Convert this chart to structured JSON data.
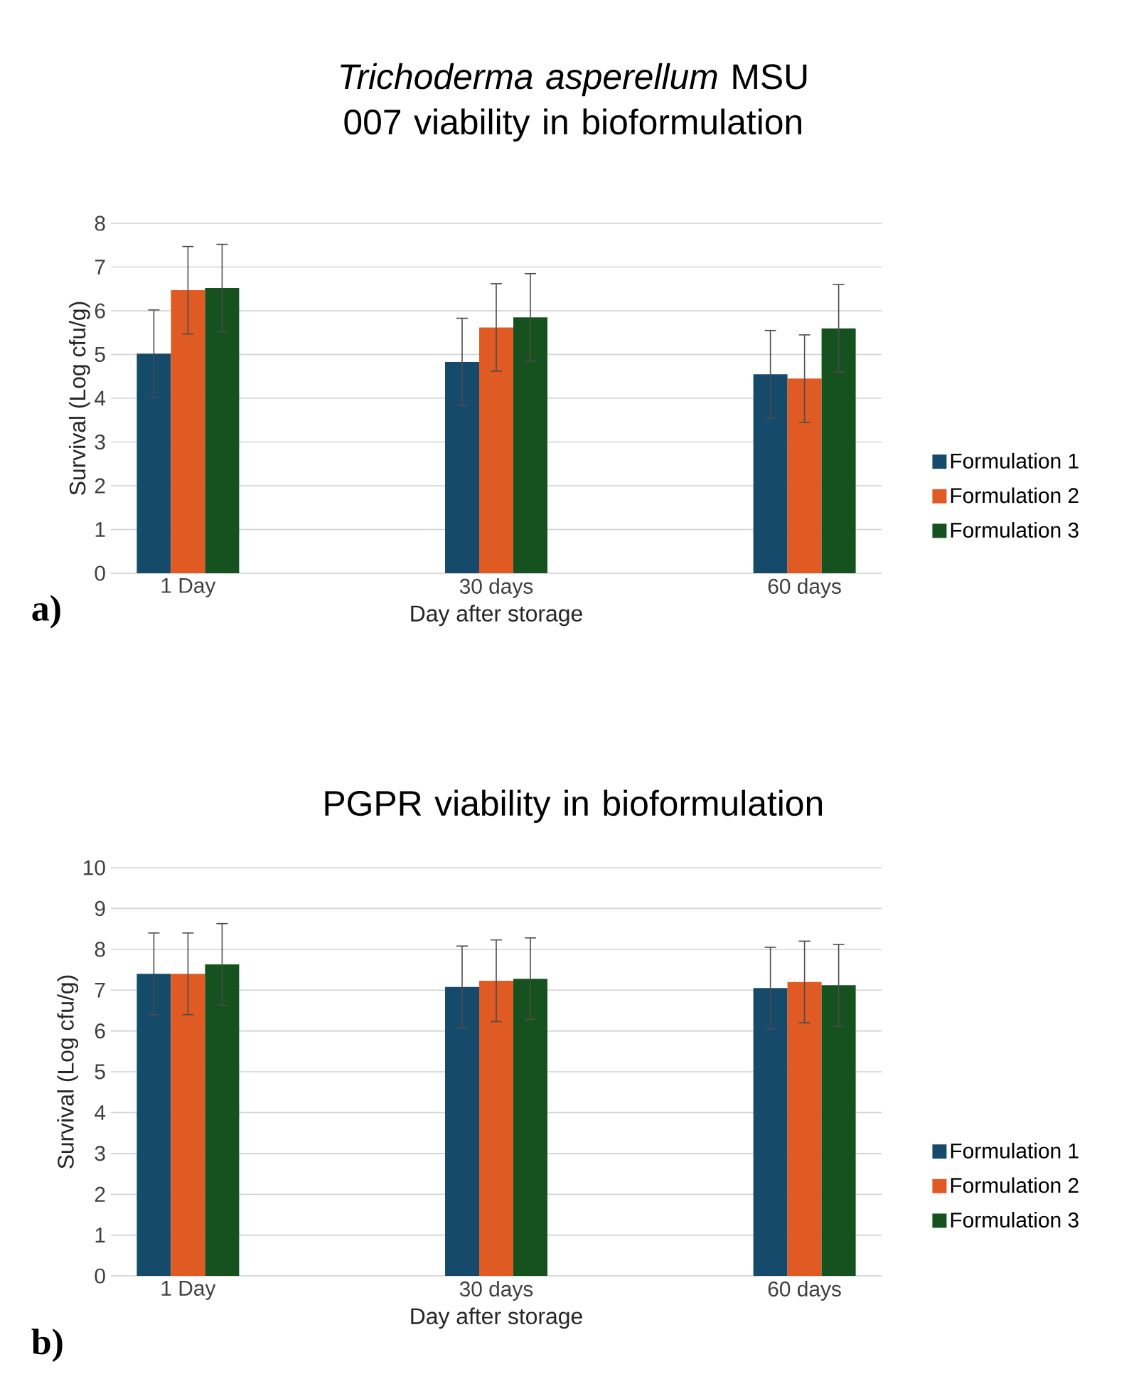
{
  "chart_data": [
    {
      "type": "bar",
      "title": "*Trichoderma asperellum* MSU 007 viability  in bioformulation",
      "xlabel": "Day after storage",
      "ylabel": "Survival (Log cfu/g)",
      "categories": [
        "1 Day",
        "30 days",
        "60 days"
      ],
      "ylim": [
        0,
        8
      ],
      "yticks": [
        0,
        1,
        2,
        3,
        4,
        5,
        6,
        7,
        8
      ],
      "grid": "y",
      "legend": "right",
      "annotations": [
        "a)"
      ],
      "series": [
        {
          "name": "Formulation 1",
          "color": "#154a6b",
          "values": [
            5.02,
            4.83,
            4.55
          ],
          "errors": [
            1,
            1,
            1
          ]
        },
        {
          "name": "Formulation 2",
          "color": "#e05a24",
          "values": [
            6.47,
            5.62,
            4.45
          ],
          "errors": [
            1,
            1,
            1
          ]
        },
        {
          "name": "Formulation 3",
          "color": "#155220",
          "values": [
            6.52,
            5.85,
            5.6
          ],
          "errors": [
            1,
            1,
            1
          ]
        }
      ]
    },
    {
      "type": "bar",
      "title": "PGPR viability in bioformulation",
      "xlabel": "Day after storage",
      "ylabel": "Survival (Log cfu/g)",
      "categories": [
        "1 Day",
        "30 days",
        "60 days"
      ],
      "ylim": [
        0,
        10
      ],
      "yticks": [
        0,
        1,
        2,
        3,
        4,
        5,
        6,
        7,
        8,
        9,
        10
      ],
      "grid": "y",
      "legend": "right",
      "annotations": [
        "b)"
      ],
      "series": [
        {
          "name": "Formulation 1",
          "color": "#154a6b",
          "values": [
            7.4,
            7.08,
            7.05
          ],
          "errors": [
            1,
            1,
            1
          ]
        },
        {
          "name": "Formulation 2",
          "color": "#e05a24",
          "values": [
            7.4,
            7.23,
            7.2
          ],
          "errors": [
            1,
            1,
            1
          ]
        },
        {
          "name": "Formulation 3",
          "color": "#155220",
          "values": [
            7.63,
            7.28,
            7.12
          ],
          "errors": [
            1,
            1,
            1
          ]
        }
      ]
    }
  ]
}
